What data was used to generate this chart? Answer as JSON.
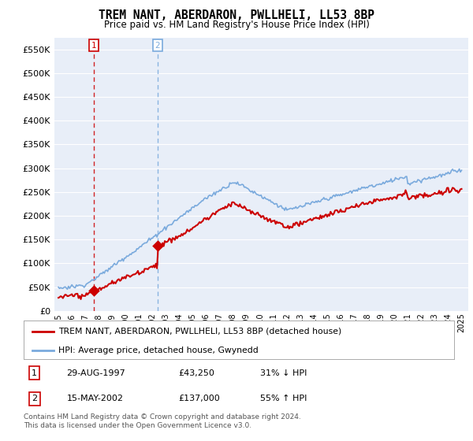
{
  "title": "TREM NANT, ABERDARON, PWLLHELI, LL53 8BP",
  "subtitle": "Price paid vs. HM Land Registry's House Price Index (HPI)",
  "ylim": [
    0,
    575000
  ],
  "yticks": [
    0,
    50000,
    100000,
    150000,
    200000,
    250000,
    300000,
    350000,
    400000,
    450000,
    500000,
    550000
  ],
  "ytick_labels": [
    "£0",
    "£50K",
    "£100K",
    "£150K",
    "£200K",
    "£250K",
    "£300K",
    "£350K",
    "£400K",
    "£450K",
    "£500K",
    "£550K"
  ],
  "property_color": "#cc0000",
  "hpi_color": "#7aaadd",
  "marker_color": "#cc0000",
  "vline1_color": "#cc0000",
  "vline2_color": "#7aaadd",
  "sale1_year": 1997.65,
  "sale1_price": 43250,
  "sale2_year": 2002.37,
  "sale2_price": 137000,
  "legend_property": "TREM NANT, ABERDARON, PWLLHELI, LL53 8BP (detached house)",
  "legend_hpi": "HPI: Average price, detached house, Gwynedd",
  "table_row1": [
    "1",
    "29-AUG-1997",
    "£43,250",
    "31% ↓ HPI"
  ],
  "table_row2": [
    "2",
    "15-MAY-2002",
    "£137,000",
    "55% ↑ HPI"
  ],
  "footer": "Contains HM Land Registry data © Crown copyright and database right 2024.\nThis data is licensed under the Open Government Licence v3.0.",
  "bg_color": "#e8eef8",
  "grid_color": "#ffffff",
  "xmin": 1994.7,
  "xmax": 2025.5
}
